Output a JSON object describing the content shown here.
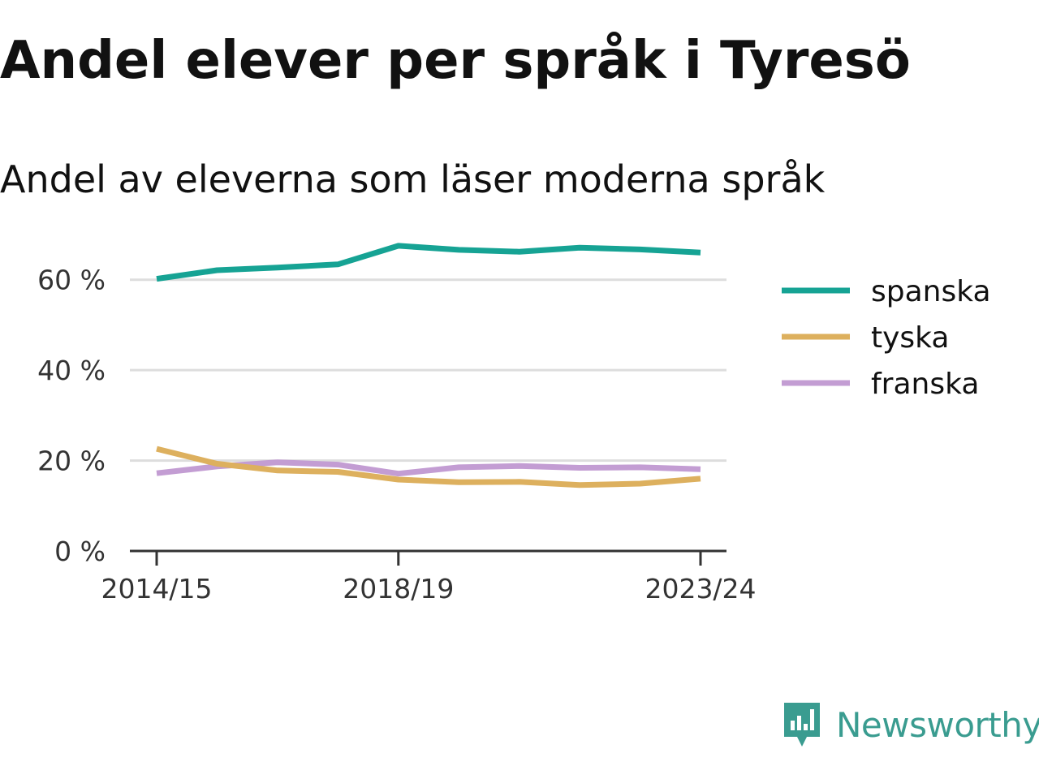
{
  "title": "Andel elever per språk i Tyresö",
  "subtitle": "Andel av eleverna som läser moderna språk",
  "brand": {
    "name": "Newsworthy",
    "color": "#3a9c90"
  },
  "chart_data": {
    "type": "line",
    "x": [
      "2014/15",
      "2015/16",
      "2016/17",
      "2017/18",
      "2018/19",
      "2019/20",
      "2020/21",
      "2021/22",
      "2022/23",
      "2023/24"
    ],
    "x_tick_labels": [
      "2014/15",
      "2018/19",
      "2023/24"
    ],
    "y_ticks": [
      0,
      20,
      40,
      60
    ],
    "y_tick_labels": [
      "0 %",
      "20 %",
      "40 %",
      "60 %"
    ],
    "ylim": [
      0,
      70
    ],
    "grid": true,
    "legend_position": "right",
    "series": [
      {
        "name": "spanska",
        "color": "#16a394",
        "values": [
          60.2,
          62.1,
          62.7,
          63.4,
          67.5,
          66.6,
          66.2,
          67.1,
          66.7,
          66.0
        ]
      },
      {
        "name": "tyska",
        "color": "#ddb05e",
        "values": [
          22.6,
          19.3,
          17.8,
          17.5,
          15.8,
          15.2,
          15.3,
          14.6,
          14.9,
          16.0
        ]
      },
      {
        "name": "franska",
        "color": "#c39dd3",
        "values": [
          17.2,
          18.7,
          19.6,
          19.1,
          17.1,
          18.5,
          18.8,
          18.4,
          18.5,
          18.1
        ]
      }
    ]
  }
}
